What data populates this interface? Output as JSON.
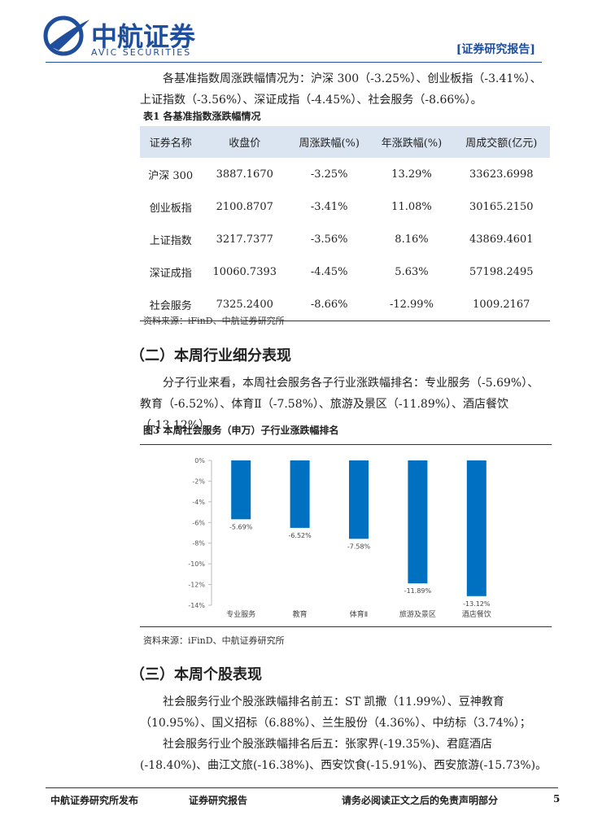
{
  "header": {
    "brand": "中航证券",
    "brand_en": "AVIC SECURITIES",
    "report_type": "[证券研究报告]"
  },
  "paragraph_1": "各基准指数周涨跌幅情况为：沪深 300（-3.25%）、创业板指（-3.41%）、上证指数（-3.56%）、深证成指（-4.45%）、社会服务（-8.66%）。",
  "table": {
    "caption": "表1 各基准指数涨跌幅情况",
    "columns": [
      "证券名称",
      "收盘价",
      "周涨跌幅(%)",
      "年涨跌幅(%)",
      "周成交额(亿元)"
    ],
    "rows": [
      [
        "沪深 300",
        "3887.1670",
        "-3.25%",
        "13.29%",
        "33623.6998"
      ],
      [
        "创业板指",
        "2100.8707",
        "-3.41%",
        "11.08%",
        "30165.2150"
      ],
      [
        "上证指数",
        "3217.7377",
        "-3.56%",
        "8.16%",
        "43869.4601"
      ],
      [
        "深证成指",
        "10060.7393",
        "-4.45%",
        "5.63%",
        "57198.2495"
      ],
      [
        "社会服务",
        "7325.2400",
        "-8.66%",
        "-12.99%",
        "1009.2167"
      ]
    ]
  },
  "source_1": "资料来源：iFinD、中航证券研究所",
  "section_2_heading": "（二）本周行业细分表现",
  "paragraph_2": "分子行业来看，本周社会服务各子行业涨跌幅排名：专业服务（-5.69%）、教育（-6.52%）、体育Ⅱ（-7.58%）、旅游及景区（-11.89%）、酒店餐饮（-13.12%）。",
  "figure_caption": "图3 本周社会服务（申万）子行业涨跌幅排名",
  "chart_data": {
    "type": "bar",
    "categories": [
      "专业服务",
      "教育",
      "体育Ⅱ",
      "旅游及景区",
      "酒店餐饮"
    ],
    "values": [
      -5.69,
      -6.52,
      -7.58,
      -11.89,
      -13.12
    ],
    "value_labels": [
      "-5.69%",
      "-6.52%",
      "-7.58%",
      "-11.89%",
      "-13.12%"
    ],
    "color": "#0070c0",
    "ylim": [
      -14,
      0
    ],
    "yticks": [
      {
        "value": 0,
        "label": "0%"
      },
      {
        "value": -2,
        "label": "-2%"
      },
      {
        "value": -4,
        "label": "-4%"
      },
      {
        "value": -6,
        "label": "-6%"
      },
      {
        "value": -8,
        "label": "-8%"
      },
      {
        "value": -10,
        "label": "-10%"
      },
      {
        "value": -12,
        "label": "-12%"
      },
      {
        "value": -14,
        "label": "-14%"
      }
    ]
  },
  "source_2": "资料来源：iFinD、中航证券研究所",
  "section_3_heading": "（三）本周个股表现",
  "paragraph_3a": "社会服务行业个股涨跌幅排名前五：ST 凯撒（11.99%）、豆神教育（10.95%）、国义招标（6.88%）、兰生股份（4.36%）、中纺标（3.74%）；",
  "paragraph_3b": "社会服务行业个股涨跌幅排名后五：张家界(-19.35%)、君庭酒店(-18.40%)、曲江文旅(-16.38%)、西安饮食(-15.91%)、西安旅游(-15.73%)。",
  "footer": {
    "left": "中航证券研究所发布",
    "middle": "证券研究报告",
    "right": "请务必阅读正文之后的免责声明部分",
    "page": "5"
  }
}
